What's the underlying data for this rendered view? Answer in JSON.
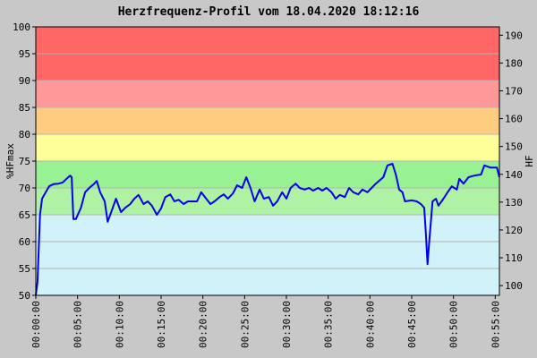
{
  "chart_data": {
    "type": "line",
    "title": "Herzfrequenz-Profil vom 18.04.2020 18:12:16",
    "y_label": "%HFmax",
    "y2_label": "HF",
    "xlim": [
      0,
      55.5
    ],
    "xticks": [
      {
        "value": 0,
        "label": "00:00:00"
      },
      {
        "value": 5,
        "label": "00:05:00"
      },
      {
        "value": 10,
        "label": "00:10:00"
      },
      {
        "value": 15,
        "label": "00:15:00"
      },
      {
        "value": 20,
        "label": "00:20:00"
      },
      {
        "value": 25,
        "label": "00:25:00"
      },
      {
        "value": 30,
        "label": "00:30:00"
      },
      {
        "value": 35,
        "label": "00:35:00"
      },
      {
        "value": 40,
        "label": "00:40:00"
      },
      {
        "value": 45,
        "label": "00:45:00"
      },
      {
        "value": 50,
        "label": "00:50:00"
      },
      {
        "value": 55,
        "label": "00:55:00"
      }
    ],
    "ylim": [
      50,
      100
    ],
    "yticks": [
      50,
      55,
      60,
      65,
      70,
      75,
      80,
      85,
      90,
      95,
      100
    ],
    "y2lim": [
      96.5,
      193
    ],
    "y2ticks": [
      100,
      110,
      120,
      130,
      140,
      150,
      160,
      170,
      180,
      190
    ],
    "grid": true,
    "zones": [
      {
        "from": 50,
        "to": 65,
        "color": "#d0f2f8"
      },
      {
        "from": 65,
        "to": 70,
        "color": "#b0f2a4"
      },
      {
        "from": 70,
        "to": 75,
        "color": "#98f294"
      },
      {
        "from": 75,
        "to": 80,
        "color": "#ffff99"
      },
      {
        "from": 80,
        "to": 85,
        "color": "#ffcc80"
      },
      {
        "from": 85,
        "to": 90,
        "color": "#ff9999"
      },
      {
        "from": 90,
        "to": 100,
        "color": "#ff6666"
      }
    ],
    "x": [
      0,
      0.2,
      0.5,
      0.75,
      1.3,
      1.6,
      2.1,
      2.7,
      3.2,
      3.75,
      4.1,
      4.3,
      4.5,
      4.8,
      5.4,
      5.9,
      6.4,
      7,
      7.3,
      7.7,
      8.25,
      8.6,
      9.1,
      9.6,
      10.2,
      10.7,
      11.3,
      11.8,
      12.3,
      12.9,
      13.4,
      13.9,
      14.5,
      15,
      15.5,
      16.1,
      16.6,
      17.1,
      17.7,
      18.2,
      19.3,
      19.8,
      20.4,
      20.9,
      21.4,
      22,
      22.5,
      23,
      23.6,
      24.1,
      24.7,
      25.2,
      25.7,
      26.2,
      26.8,
      27.3,
      27.9,
      28.4,
      28.9,
      29.5,
      30,
      30.5,
      31.1,
      31.6,
      32.2,
      32.7,
      33.2,
      33.8,
      34.3,
      34.8,
      35.4,
      35.9,
      36.4,
      37,
      37.5,
      38,
      38.6,
      39.1,
      39.7,
      40.2,
      40.7,
      41.6,
      42.1,
      42.7,
      43.1,
      43.5,
      43.9,
      44.2,
      45,
      45.6,
      46.1,
      46.5,
      46.7,
      46.9,
      47.1,
      47.5,
      47.9,
      48.2,
      48.8,
      49.3,
      49.8,
      50.4,
      50.7,
      51.2,
      51.8,
      52.5,
      53.3,
      53.7,
      54.4,
      55.2,
      55.5
    ],
    "series": [
      {
        "color": "#0000ee",
        "values": [
          50,
          52.5,
          65,
          68,
          69.5,
          70.3,
          70.7,
          70.8,
          71,
          71.8,
          72.3,
          72,
          64.2,
          64.2,
          66.3,
          69.2,
          70,
          70.8,
          71.3,
          69.2,
          67.5,
          63.7,
          65.8,
          68,
          65.5,
          66.3,
          67,
          68,
          68.7,
          67,
          67.5,
          66.7,
          65,
          66.2,
          68.3,
          68.8,
          67.5,
          67.8,
          67,
          67.5,
          67.5,
          69.2,
          68,
          67,
          67.5,
          68.3,
          68.8,
          68,
          69,
          70.5,
          70,
          72,
          70,
          67.5,
          69.7,
          68,
          68.3,
          66.7,
          67.5,
          69.2,
          68,
          70,
          70.8,
          70,
          69.7,
          70,
          69.5,
          70,
          69.5,
          70,
          69.2,
          68,
          68.7,
          68.3,
          70,
          69.2,
          68.8,
          69.7,
          69.2,
          70,
          70.8,
          72,
          74.2,
          74.5,
          72.5,
          69.7,
          69.2,
          67.5,
          67.7,
          67.5,
          67,
          66.3,
          61.3,
          55.8,
          60,
          67.5,
          68,
          66.7,
          68,
          69.2,
          70.3,
          69.7,
          71.7,
          70.8,
          72,
          72.3,
          72.5,
          74.2,
          73.8,
          73.8,
          72
        ]
      }
    ]
  }
}
